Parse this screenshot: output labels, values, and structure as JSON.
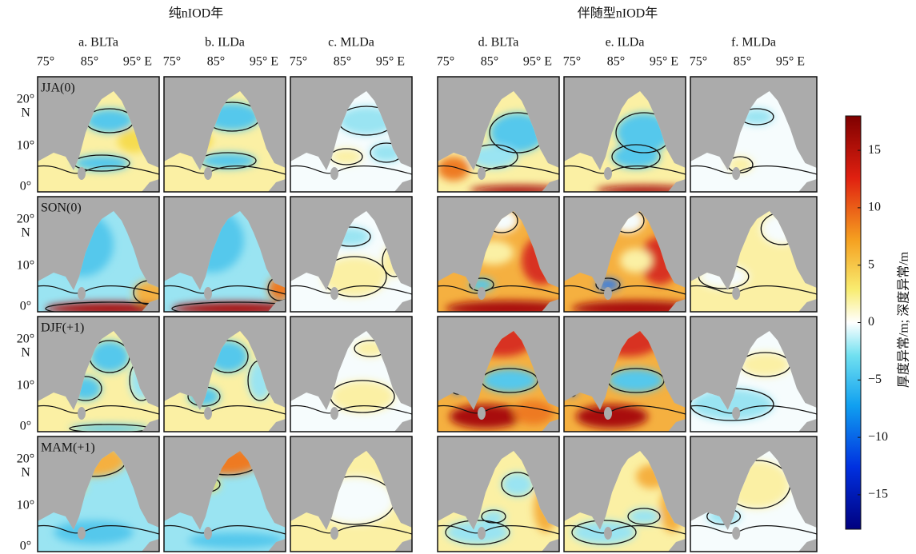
{
  "figure": {
    "group_titles": [
      "纯nIOD年",
      "伴随型nIOD年"
    ],
    "panel_titles": [
      "a. BLTa",
      "b. ILDa",
      "c. MLDa",
      "d. BLTa",
      "e. ILDa",
      "f. MLDa"
    ],
    "xtick_labels": [
      "75°",
      "85°",
      "95° E"
    ],
    "ytick_labels": [
      "20°",
      "N",
      "10°",
      "0°"
    ],
    "row_labels": [
      "JJA(0)",
      "SON(0)",
      "DJF(+1)",
      "MAM(+1)"
    ]
  },
  "colorbar": {
    "lim": [
      -18,
      18
    ],
    "ticks": [
      {
        "value": -15,
        "label": "−15"
      },
      {
        "value": -10,
        "label": "−10"
      },
      {
        "value": -5,
        "label": "−5"
      },
      0,
      5,
      10,
      15
    ],
    "label": "厚度异常/m; 深度异常/m"
  }
}
